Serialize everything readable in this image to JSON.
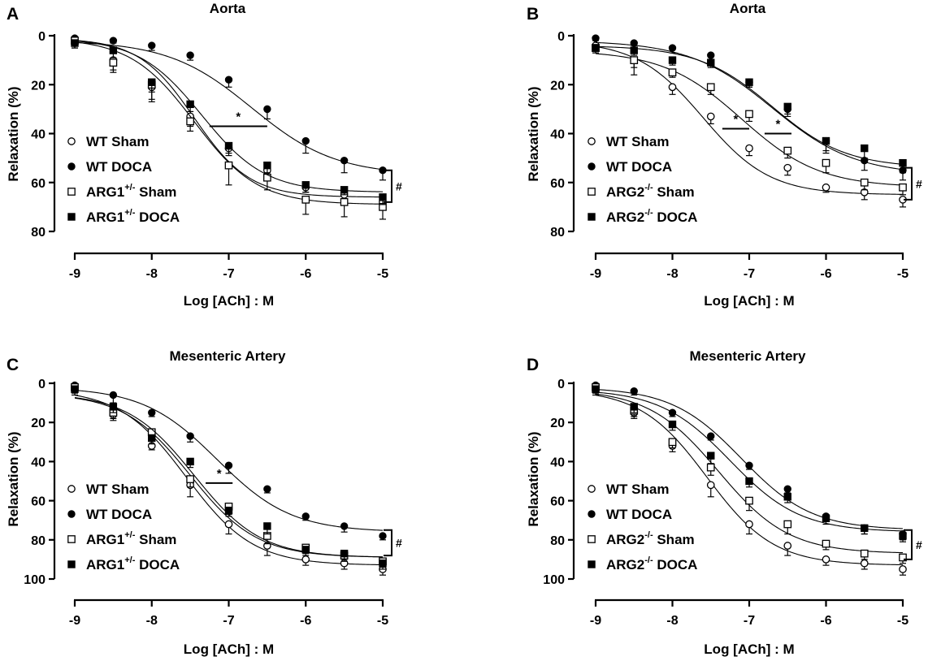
{
  "figure": {
    "colors": {
      "ink": "#000000",
      "open_fill": "#ffffff"
    }
  },
  "chart_data": [
    {
      "panel_letter": "A",
      "type": "scatter",
      "title": "Aorta",
      "xlabel": "Log [ACh] : M",
      "ylabel": "Relaxation (%)",
      "xlim": [
        -9,
        -5
      ],
      "ylim": [
        0,
        80
      ],
      "y_inverted": true,
      "xticks": [
        -9,
        -8,
        -7,
        -6,
        -5
      ],
      "yticks": [
        0,
        20,
        40,
        60,
        80
      ],
      "x": [
        -9,
        -8.5,
        -8,
        -7.5,
        -7,
        -6.5,
        -6,
        -5.5,
        -5
      ],
      "series": [
        {
          "name": "WT Sham",
          "legend_base": "WT Sham",
          "legend_sup": "",
          "legend_suffix": "",
          "marker": "circle-open",
          "values": [
            3,
            10,
            21,
            33,
            46,
            55,
            62,
            65,
            68
          ],
          "errors": [
            2,
            4,
            5,
            4,
            3,
            3,
            2,
            2,
            3
          ],
          "fit": {
            "bottom": 1,
            "top": 66,
            "logec50": -7.45,
            "hill": 1.2
          }
        },
        {
          "name": "WT DOCA",
          "legend_base": "WT DOCA",
          "legend_sup": "",
          "legend_suffix": "",
          "marker": "circle-filled",
          "values": [
            1,
            2,
            4,
            8,
            18,
            30,
            43,
            51,
            55
          ],
          "errors": [
            1,
            1,
            2,
            2,
            3,
            4,
            5,
            5,
            4
          ],
          "fit": {
            "bottom": 2,
            "top": 57,
            "logec50": -6.7,
            "hill": 0.8
          }
        },
        {
          "name": "ARG1+/- Sham",
          "legend_base": "ARG1",
          "legend_sup": "+/-",
          "legend_suffix": " Sham",
          "marker": "square-open",
          "values": [
            2,
            11,
            20,
            35,
            53,
            58,
            67,
            68,
            70
          ],
          "errors": [
            2,
            4,
            7,
            4,
            8,
            5,
            6,
            6,
            5
          ],
          "fit": {
            "bottom": 1,
            "top": 69,
            "logec50": -7.45,
            "hill": 1.05
          }
        },
        {
          "name": "ARG1+/- DOCA",
          "legend_base": "ARG1",
          "legend_sup": "+/-",
          "legend_suffix": " DOCA",
          "marker": "square-filled",
          "values": [
            3,
            6,
            19,
            28,
            45,
            53,
            61,
            63,
            66
          ],
          "errors": [
            2,
            3,
            4,
            3,
            3,
            3,
            3,
            2,
            3
          ],
          "fit": {
            "bottom": 1,
            "top": 64,
            "logec50": -7.35,
            "hill": 1.05
          }
        }
      ],
      "annotations": [
        {
          "text": "*",
          "x_from": -7.25,
          "x_to": -6.5,
          "y": 37
        },
        {
          "text": "#",
          "bracket_from_y": 55,
          "bracket_to_y": 68
        }
      ]
    },
    {
      "panel_letter": "B",
      "type": "scatter",
      "title": "Aorta",
      "xlabel": "Log [ACh] : M",
      "ylabel": "Relaxation (%)",
      "xlim": [
        -9,
        -5
      ],
      "ylim": [
        0,
        80
      ],
      "y_inverted": true,
      "xticks": [
        -9,
        -8,
        -7,
        -6,
        -5
      ],
      "yticks": [
        0,
        20,
        40,
        60,
        80
      ],
      "x": [
        -9,
        -8.5,
        -8,
        -7.5,
        -7,
        -6.5,
        -6,
        -5.5,
        -5
      ],
      "series": [
        {
          "name": "WT Sham",
          "legend_base": "WT Sham",
          "legend_sup": "",
          "legend_suffix": "",
          "marker": "circle-open",
          "values": [
            4,
            10,
            21,
            33,
            46,
            54,
            62,
            64,
            67
          ],
          "errors": [
            2,
            3,
            3,
            3,
            3,
            3,
            2,
            3,
            3
          ],
          "fit": {
            "bottom": 2,
            "top": 65,
            "logec50": -7.6,
            "hill": 1.0
          }
        },
        {
          "name": "WT DOCA",
          "legend_base": "WT DOCA",
          "legend_sup": "",
          "legend_suffix": "",
          "marker": "circle-filled",
          "values": [
            1,
            3,
            5,
            8,
            19,
            30,
            43,
            51,
            55
          ],
          "errors": [
            1,
            1,
            2,
            2,
            2,
            3,
            5,
            4,
            4
          ],
          "fit": {
            "bottom": 2,
            "top": 57,
            "logec50": -6.7,
            "hill": 0.8
          }
        },
        {
          "name": "ARG2-/- Sham",
          "legend_base": "ARG2",
          "legend_sup": "-/-",
          "legend_suffix": " Sham",
          "marker": "square-open",
          "values": [
            5,
            10,
            15,
            21,
            32,
            47,
            52,
            60,
            62
          ],
          "errors": [
            2,
            6,
            2,
            3,
            3,
            3,
            4,
            3,
            3
          ],
          "fit": {
            "bottom": 6,
            "top": 62,
            "logec50": -7.1,
            "hill": 0.85
          }
        },
        {
          "name": "ARG2-/- DOCA",
          "legend_base": "ARG2",
          "legend_sup": "-/-",
          "legend_suffix": " DOCA",
          "marker": "square-filled",
          "values": [
            5,
            6,
            10,
            11,
            19,
            29,
            43,
            46,
            52
          ],
          "errors": [
            2,
            2,
            2,
            2,
            2,
            3,
            4,
            4,
            4
          ],
          "fit": {
            "bottom": 4,
            "top": 54,
            "logec50": -6.7,
            "hill": 0.9
          }
        }
      ],
      "annotations": [
        {
          "text": "*",
          "x_from": -7.35,
          "x_to": -7.0,
          "y": 38
        },
        {
          "text": "*",
          "x_from": -6.8,
          "x_to": -6.45,
          "y": 40
        },
        {
          "text": "#",
          "bracket_from_y": 54,
          "bracket_to_y": 67
        }
      ]
    },
    {
      "panel_letter": "C",
      "type": "scatter",
      "title": "Mesenteric Artery",
      "xlabel": "Log [ACh] : M",
      "ylabel": "Relaxation (%)",
      "xlim": [
        -9,
        -5
      ],
      "ylim": [
        0,
        100
      ],
      "y_inverted": true,
      "xticks": [
        -9,
        -8,
        -7,
        -6,
        -5
      ],
      "yticks": [
        0,
        20,
        40,
        60,
        80,
        100
      ],
      "x": [
        -9,
        -8.5,
        -8,
        -7.5,
        -7,
        -6.5,
        -6,
        -5.5,
        -5
      ],
      "series": [
        {
          "name": "WT Sham",
          "legend_base": "WT Sham",
          "legend_sup": "",
          "legend_suffix": "",
          "marker": "circle-open",
          "values": [
            2,
            16,
            32,
            52,
            72,
            83,
            90,
            92,
            95
          ],
          "errors": [
            3,
            3,
            2,
            6,
            5,
            5,
            3,
            3,
            3
          ],
          "fit": {
            "bottom": 3,
            "top": 93,
            "logec50": -7.55,
            "hill": 1.0
          }
        },
        {
          "name": "WT DOCA",
          "legend_base": "WT DOCA",
          "legend_sup": "",
          "legend_suffix": "",
          "marker": "circle-filled",
          "values": [
            1,
            6,
            15,
            27,
            42,
            54,
            68,
            73,
            78
          ],
          "errors": [
            3,
            4,
            2,
            3,
            4,
            2,
            2,
            3,
            2
          ],
          "fit": {
            "bottom": 2,
            "top": 76,
            "logec50": -7.15,
            "hill": 0.9
          }
        },
        {
          "name": "ARG1+/- Sham",
          "legend_base": "ARG1",
          "legend_sup": "+/-",
          "legend_suffix": " Sham",
          "marker": "square-open",
          "values": [
            2,
            15,
            25,
            49,
            63,
            78,
            84,
            88,
            91
          ],
          "errors": [
            3,
            3,
            2,
            4,
            4,
            4,
            3,
            3,
            3
          ],
          "fit": {
            "bottom": 5,
            "top": 89,
            "logec50": -7.5,
            "hill": 1.0
          }
        },
        {
          "name": "ARG1+/- DOCA",
          "legend_base": "ARG1",
          "legend_sup": "+/-",
          "legend_suffix": " DOCA",
          "marker": "square-filled",
          "values": [
            3,
            12,
            28,
            40,
            65,
            73,
            85,
            87,
            92
          ],
          "errors": [
            3,
            3,
            3,
            3,
            3,
            4,
            3,
            3,
            3
          ],
          "fit": {
            "bottom": 5,
            "top": 89,
            "logec50": -7.45,
            "hill": 1.0
          }
        }
      ],
      "annotations": [
        {
          "text": "*",
          "x_from": -7.3,
          "x_to": -6.95,
          "y": 51
        },
        {
          "text": "#",
          "bracket_from_y": 75,
          "bracket_to_y": 88
        }
      ]
    },
    {
      "panel_letter": "D",
      "type": "scatter",
      "title": "Mesenteric Artery",
      "xlabel": "Log [ACh] : M",
      "ylabel": "Relaxation (%)",
      "xlim": [
        -9,
        -5
      ],
      "ylim": [
        0,
        100
      ],
      "y_inverted": true,
      "xticks": [
        -9,
        -8,
        -7,
        -6,
        -5
      ],
      "yticks": [
        0,
        20,
        40,
        60,
        80,
        100
      ],
      "x": [
        -9,
        -8.5,
        -8,
        -7.5,
        -7,
        -6.5,
        -6,
        -5.5,
        -5
      ],
      "series": [
        {
          "name": "WT Sham",
          "legend_base": "WT Sham",
          "legend_sup": "",
          "legend_suffix": "",
          "marker": "circle-open",
          "values": [
            2,
            15,
            32,
            52,
            72,
            83,
            90,
            92,
            95
          ],
          "errors": [
            3,
            3,
            3,
            6,
            5,
            5,
            3,
            3,
            3
          ],
          "fit": {
            "bottom": 3,
            "top": 93,
            "logec50": -7.55,
            "hill": 1.0
          }
        },
        {
          "name": "WT DOCA",
          "legend_base": "WT DOCA",
          "legend_sup": "",
          "legend_suffix": "",
          "marker": "circle-filled",
          "values": [
            1,
            4,
            15,
            27,
            42,
            54,
            68,
            74,
            77
          ],
          "errors": [
            3,
            2,
            2,
            2,
            2,
            2,
            2,
            3,
            3
          ],
          "fit": {
            "bottom": 2,
            "top": 75,
            "logec50": -7.1,
            "hill": 0.95
          }
        },
        {
          "name": "ARG2-/- Sham",
          "legend_base": "ARG2",
          "legend_sup": "-/-",
          "legend_suffix": " Sham",
          "marker": "square-open",
          "values": [
            2,
            14,
            30,
            43,
            60,
            72,
            82,
            87,
            89
          ],
          "errors": [
            3,
            3,
            3,
            4,
            5,
            5,
            3,
            3,
            3
          ],
          "fit": {
            "bottom": 3,
            "top": 87,
            "logec50": -7.4,
            "hill": 0.95
          }
        },
        {
          "name": "ARG2-/- DOCA",
          "legend_base": "ARG2",
          "legend_sup": "-/-",
          "legend_suffix": " DOCA",
          "marker": "square-filled",
          "values": [
            3,
            12,
            21,
            37,
            50,
            58,
            69,
            74,
            78
          ],
          "errors": [
            3,
            3,
            3,
            4,
            3,
            3,
            3,
            3,
            3
          ],
          "fit": {
            "bottom": 3,
            "top": 76,
            "logec50": -7.25,
            "hill": 0.95
          }
        }
      ],
      "annotations": [
        {
          "text": "#",
          "bracket_from_y": 75,
          "bracket_to_y": 90
        }
      ]
    }
  ]
}
